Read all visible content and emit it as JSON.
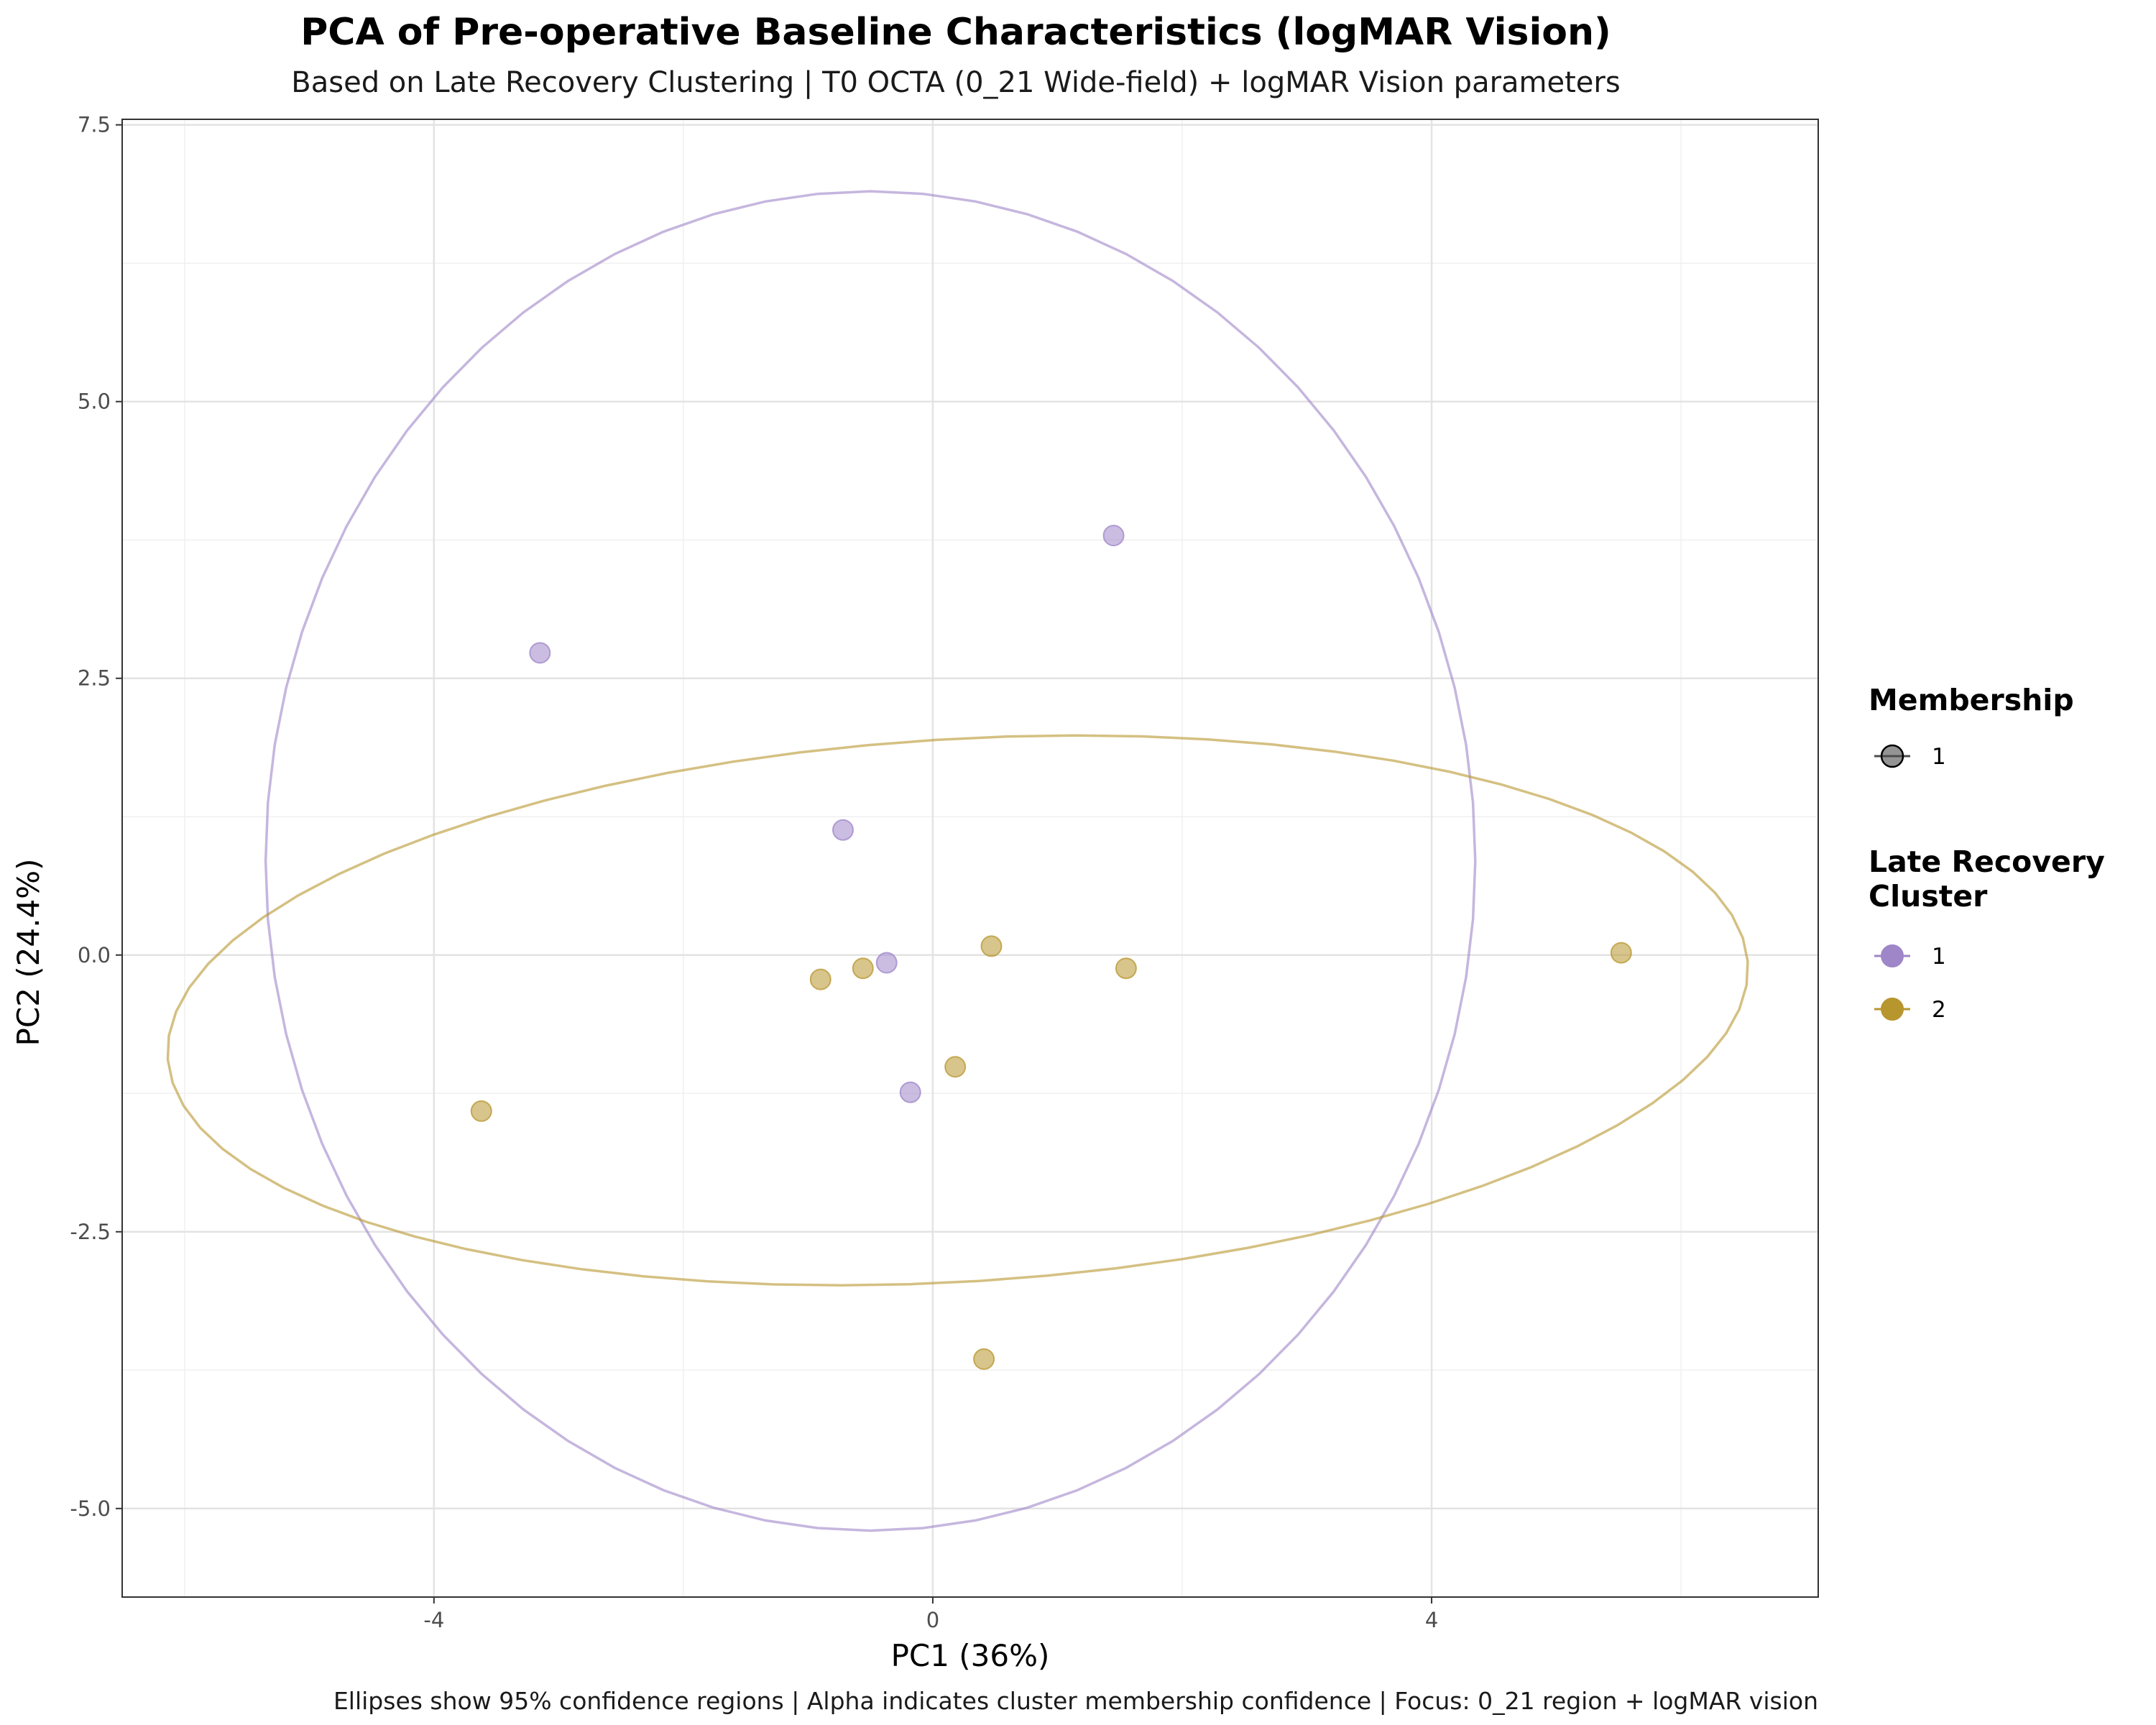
{
  "title": "PCA of Pre-operative Baseline Characteristics (logMAR Vision)",
  "subtitle": "Based on Late Recovery Clustering | T0 OCTA (0_21 Wide-field) + logMAR Vision parameters",
  "caption": "Ellipses show 95% confidence regions | Alpha indicates cluster membership confidence | Focus: 0_21 region + logMAR vision",
  "chart_data": {
    "type": "scatter",
    "xlabel": "PC1 (36%)",
    "ylabel": "PC2 (24.4%)",
    "xlim": [
      -6.5,
      7.1
    ],
    "ylim": [
      -5.8,
      7.55
    ],
    "x_ticks": [
      -4,
      0,
      4
    ],
    "x_tick_labels": [
      "-4",
      "0",
      "4"
    ],
    "y_ticks": [
      -5.0,
      -2.5,
      0.0,
      2.5,
      5.0,
      7.5
    ],
    "y_tick_labels": [
      "-5.0",
      "-2.5",
      "0.0",
      "2.5",
      "5.0",
      "7.5"
    ],
    "grid": true,
    "legend_placement": "right",
    "series": [
      {
        "name": "1",
        "color": "#9e86c8",
        "points": [
          {
            "x": -3.15,
            "y": 2.73
          },
          {
            "x": 1.45,
            "y": 3.79
          },
          {
            "x": -0.72,
            "y": 1.13
          },
          {
            "x": -0.37,
            "y": -0.07
          },
          {
            "x": -0.18,
            "y": -1.24
          }
        ],
        "ellipse": {
          "center": [
            -0.5,
            0.85
          ],
          "semi_axes": [
            4.85,
            6.05
          ],
          "angle_deg": 0
        }
      },
      {
        "name": "2",
        "color": "#b8962e",
        "points": [
          {
            "x": -3.62,
            "y": -1.41
          },
          {
            "x": -0.9,
            "y": -0.22
          },
          {
            "x": -0.56,
            "y": -0.12
          },
          {
            "x": 0.47,
            "y": 0.08
          },
          {
            "x": 1.55,
            "y": -0.12
          },
          {
            "x": 0.18,
            "y": -1.01
          },
          {
            "x": 5.52,
            "y": 0.02
          },
          {
            "x": 0.41,
            "y": -3.65
          }
        ],
        "ellipse": {
          "center": [
            0.2,
            -0.5
          ],
          "semi_axes": [
            6.35,
            2.45
          ],
          "angle_deg": 4
        }
      }
    ],
    "legends": [
      {
        "title": "Membership",
        "items": [
          {
            "label": "1",
            "color": "#4d4d4d"
          }
        ]
      },
      {
        "title_lines": [
          "Late Recovery",
          "Cluster"
        ],
        "items": [
          {
            "label": "1",
            "color": "#9e86c8"
          },
          {
            "label": "2",
            "color": "#b8962e"
          }
        ]
      }
    ]
  }
}
